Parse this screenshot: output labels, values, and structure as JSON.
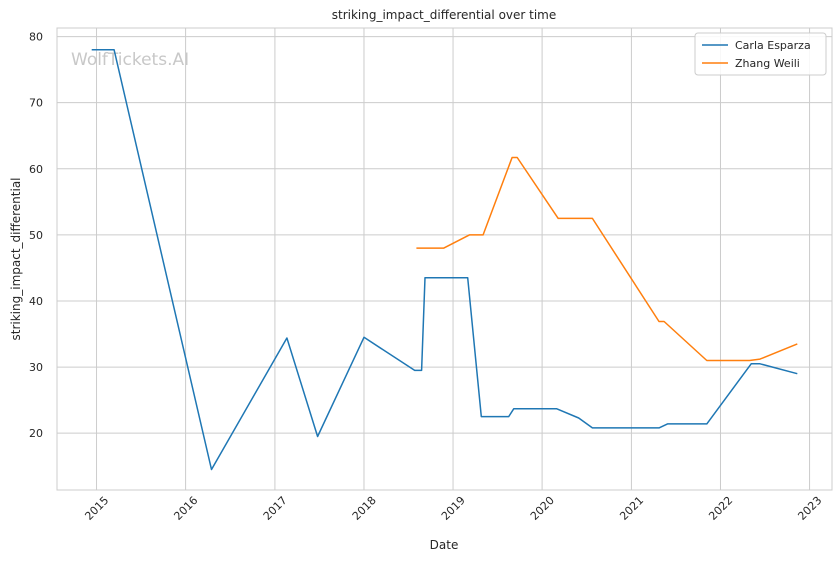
{
  "chart_data": {
    "type": "line",
    "title": "striking_impact_differential over time",
    "xlabel": "Date",
    "ylabel": "striking_impact_differential",
    "watermark": "WolfTickets.AI",
    "xlim": [
      "2014-07-23",
      "2023-04-03"
    ],
    "ylim": [
      11.4,
      81.3
    ],
    "x_ticks": [
      "2015",
      "2016",
      "2017",
      "2018",
      "2019",
      "2020",
      "2021",
      "2022",
      "2023"
    ],
    "y_ticks": [
      20,
      30,
      40,
      50,
      60,
      70,
      80
    ],
    "grid": true,
    "legend_position": "top-right",
    "series": [
      {
        "name": "Carla Esparza",
        "color": "#1f77b4",
        "points": [
          [
            "2014-12-12",
            78.0
          ],
          [
            "2015-03-14",
            78.0
          ],
          [
            "2016-04-16",
            14.5
          ],
          [
            "2017-02-19",
            34.4
          ],
          [
            "2017-06-25",
            19.5
          ],
          [
            "2018-01-01",
            34.5
          ],
          [
            "2018-07-28",
            29.5
          ],
          [
            "2018-08-25",
            29.5
          ],
          [
            "2018-09-08",
            43.5
          ],
          [
            "2019-03-02",
            43.5
          ],
          [
            "2019-04-27",
            22.5
          ],
          [
            "2019-08-17",
            22.5
          ],
          [
            "2019-09-07",
            23.7
          ],
          [
            "2020-02-29",
            23.7
          ],
          [
            "2020-05-30",
            22.3
          ],
          [
            "2020-07-25",
            20.8
          ],
          [
            "2021-04-24",
            20.8
          ],
          [
            "2021-05-29",
            21.4
          ],
          [
            "2021-11-06",
            21.4
          ],
          [
            "2022-05-07",
            30.5
          ],
          [
            "2022-06-12",
            30.5
          ],
          [
            "2022-11-12",
            29.0
          ]
        ]
      },
      {
        "name": "Zhang Weili",
        "color": "#ff7f0e",
        "points": [
          [
            "2018-08-04",
            48.0
          ],
          [
            "2018-11-24",
            48.0
          ],
          [
            "2019-03-09",
            50.0
          ],
          [
            "2019-05-04",
            50.0
          ],
          [
            "2019-08-31",
            61.7
          ],
          [
            "2019-09-21",
            61.7
          ],
          [
            "2020-03-07",
            52.5
          ],
          [
            "2020-07-25",
            52.5
          ],
          [
            "2021-04-24",
            36.9
          ],
          [
            "2021-05-15",
            36.9
          ],
          [
            "2021-11-06",
            31.0
          ],
          [
            "2022-04-30",
            31.0
          ],
          [
            "2022-06-12",
            31.2
          ],
          [
            "2022-11-12",
            33.5
          ]
        ]
      }
    ]
  }
}
